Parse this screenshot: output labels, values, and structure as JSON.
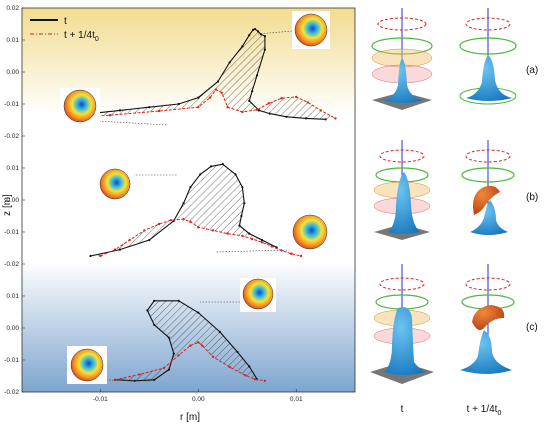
{
  "chart_data": {
    "type": "line",
    "xlabel": "r [m]",
    "ylabel": "z [m]",
    "xticks": [
      "-0.01",
      "0.00",
      "0.01"
    ],
    "yticks": [
      "0.02",
      "0.01",
      "0.00",
      "-0.01",
      "-0.02"
    ],
    "xlim": [
      -0.018,
      0.016
    ],
    "panel_ylim": [
      -0.02,
      0.02
    ],
    "legend": [
      {
        "label_main": "t",
        "label_sub": ""
      },
      {
        "label_main": "t + 1/4t",
        "label_sub": "0"
      }
    ],
    "series_colors": {
      "t": "#111111",
      "t_quarter": "#dd2222"
    },
    "panels": [
      {
        "id": "a",
        "series": [
          {
            "name": "t",
            "x": [
              -0.014,
              -0.011,
              -0.008,
              -0.005,
              -0.002,
              0.0,
              0.002,
              0.0032,
              0.0045,
              0.0052,
              0.0056,
              0.0058,
              0.0061,
              0.0064,
              0.0068,
              0.0068,
              0.006,
              0.0055,
              0.0052,
              0.0062,
              0.0073,
              0.009,
              0.011,
              0.013
            ],
            "y": [
              -0.014,
              -0.013,
              -0.012,
              -0.011,
              -0.01,
              -0.008,
              -0.003,
              0.003,
              0.008,
              0.0115,
              0.0132,
              0.0134,
              0.0127,
              0.0118,
              0.0112,
              0.007,
              -0.001,
              -0.006,
              -0.009,
              -0.012,
              -0.013,
              -0.014,
              -0.0145,
              -0.0148
            ]
          },
          {
            "name": "t + 1/4t0",
            "x": [
              -0.014,
              -0.009,
              -0.004,
              0.0,
              0.0012,
              0.0018,
              0.0024,
              0.003,
              0.0045,
              0.006,
              0.0072,
              0.0085,
              0.01,
              0.0112,
              0.0125,
              0.014
            ],
            "y": [
              -0.0145,
              -0.0135,
              -0.0122,
              -0.011,
              -0.008,
              -0.0055,
              -0.0065,
              -0.011,
              -0.0125,
              -0.0118,
              -0.0098,
              -0.0082,
              -0.0078,
              -0.0095,
              -0.012,
              -0.0145
            ]
          }
        ]
      },
      {
        "id": "b",
        "series": [
          {
            "name": "t",
            "x": [
              -0.011,
              -0.008,
              -0.005,
              -0.0025,
              -0.0015,
              -0.0008,
              0.0002,
              0.0013,
              0.0025,
              0.0038,
              0.0045,
              0.0047,
              0.0044,
              0.0042,
              0.0052,
              0.0065,
              0.008
            ],
            "y": [
              -0.0175,
              -0.0155,
              -0.0125,
              -0.0065,
              -0.001,
              0.004,
              0.008,
              0.0105,
              0.0112,
              0.008,
              0.004,
              -0.001,
              -0.005,
              -0.008,
              -0.0105,
              -0.0125,
              -0.0148
            ]
          },
          {
            "name": "t + 1/4t0",
            "x": [
              -0.01,
              -0.0085,
              -0.007,
              -0.0055,
              -0.004,
              -0.0028,
              -0.0015,
              -0.0008,
              0.0,
              0.0015,
              0.003,
              0.0045,
              0.0055,
              0.0065,
              0.0075,
              0.0085,
              0.0095,
              0.0105
            ],
            "y": [
              -0.0175,
              -0.0155,
              -0.0125,
              -0.0095,
              -0.0075,
              -0.0063,
              -0.006,
              -0.0068,
              -0.0085,
              -0.0095,
              -0.0105,
              -0.0112,
              -0.0122,
              -0.0132,
              -0.0145,
              -0.0158,
              -0.0168,
              -0.0175
            ]
          }
        ]
      },
      {
        "id": "c",
        "series": [
          {
            "name": "t",
            "x": [
              -0.0085,
              -0.0065,
              -0.0045,
              -0.003,
              -0.0025,
              -0.003,
              -0.0045,
              -0.0052,
              -0.0045,
              -0.002,
              0.0,
              0.0022,
              0.004,
              0.0052,
              0.006
            ],
            "y": [
              -0.0162,
              -0.0165,
              -0.0162,
              -0.013,
              -0.008,
              -0.003,
              0.001,
              0.0055,
              0.0085,
              0.0085,
              0.0048,
              -0.0012,
              -0.0075,
              -0.012,
              -0.016
            ]
          },
          {
            "name": "t + 1/4t0",
            "x": [
              -0.0085,
              -0.006,
              -0.0035,
              -0.002,
              -0.0008,
              0.0,
              0.0004,
              0.0015,
              0.0032,
              0.0048,
              0.0058,
              0.0068
            ],
            "y": [
              -0.0162,
              -0.0145,
              -0.0125,
              -0.0085,
              -0.0055,
              -0.0045,
              -0.0055,
              -0.009,
              -0.0122,
              -0.0148,
              -0.016,
              -0.0165
            ]
          }
        ]
      }
    ]
  },
  "column_labels": {
    "t": "t",
    "t_quarter_main": "t + 1/4t",
    "t_quarter_sub": "0"
  },
  "panel_labels": [
    "(a)",
    "(b)",
    "(c)"
  ],
  "colors": {
    "top_band": "#f4df97",
    "bottom_band": "#7fa6cf",
    "surface_blue": "#2b8fd1",
    "orange_3d": "#d4561f",
    "ring_green": "#49b83b",
    "ring_red": "#dd2222",
    "axis_line": "#2233dd"
  }
}
